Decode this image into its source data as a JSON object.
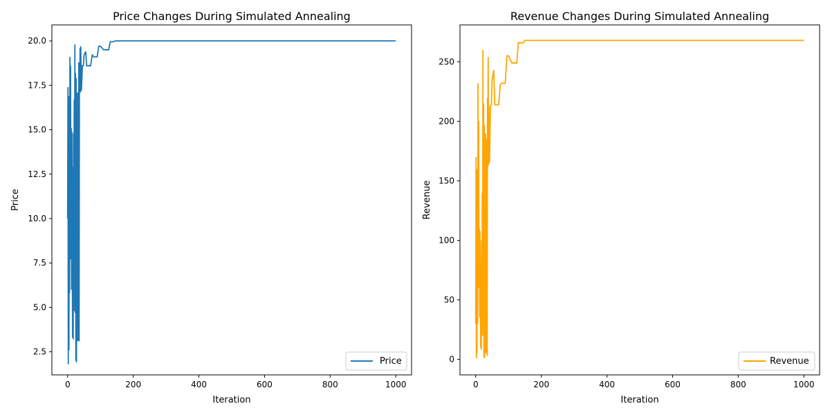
{
  "chart_data": [
    {
      "type": "line",
      "title": "Price Changes During Simulated Annealing",
      "xlabel": "Iteration",
      "ylabel": "Price",
      "xlim": [
        -48,
        1048
      ],
      "ylim": [
        1.2,
        20.9
      ],
      "xticks": [
        0,
        200,
        400,
        600,
        800,
        1000
      ],
      "yticks": [
        2.5,
        5.0,
        7.5,
        10.0,
        12.5,
        15.0,
        17.5,
        20.0
      ],
      "ytick_labels": [
        "2.5",
        "5.0",
        "7.5",
        "10.0",
        "12.5",
        "15.0",
        "17.5",
        "20.0"
      ],
      "legend": "bottom-right",
      "grid": false,
      "series": [
        {
          "name": "Price",
          "color": "#1f77b4",
          "x": [
            0,
            1,
            2,
            3,
            4,
            5,
            6,
            7,
            8,
            9,
            10,
            11,
            12,
            13,
            14,
            15,
            16,
            17,
            18,
            19,
            20,
            21,
            22,
            23,
            24,
            25,
            26,
            27,
            28,
            29,
            30,
            31,
            32,
            33,
            34,
            35,
            36,
            37,
            38,
            39,
            40,
            42,
            45,
            48,
            50,
            55,
            58,
            60,
            62,
            70,
            75,
            80,
            90,
            95,
            100,
            110,
            115,
            120,
            125,
            130,
            135,
            140,
            145,
            150,
            160,
            180,
            200,
            300,
            400,
            500,
            600,
            700,
            800,
            900,
            1000
          ],
          "y": [
            10.0,
            17.4,
            1.8,
            16.9,
            2.6,
            14.5,
            5.8,
            19.1,
            7.7,
            18.6,
            8.1,
            15.1,
            6.0,
            14.9,
            8.8,
            3.3,
            12.9,
            3.2,
            14.8,
            4.8,
            16.7,
            5.5,
            19.8,
            4.7,
            18.2,
            2.0,
            17.9,
            1.9,
            16.3,
            4.9,
            17.1,
            3.1,
            17.1,
            3.1,
            18.8,
            3.1,
            18.8,
            17.2,
            19.6,
            17.1,
            19.7,
            17.2,
            18.6,
            18.6,
            19.2,
            19.4,
            18.6,
            18.6,
            18.6,
            18.6,
            19.2,
            19.1,
            19.1,
            19.7,
            19.7,
            19.5,
            19.5,
            19.5,
            19.5,
            19.95,
            19.95,
            19.95,
            20.0,
            20.0,
            20.0,
            20.0,
            20.0,
            20.0,
            20.0,
            20.0,
            20.0,
            20.0,
            20.0,
            20.0,
            20.0
          ]
        }
      ]
    },
    {
      "type": "line",
      "title": "Revenue Changes During Simulated Annealing",
      "xlabel": "Iteration",
      "ylabel": "Revenue",
      "xlim": [
        -48,
        1048
      ],
      "ylim": [
        -13,
        281
      ],
      "xticks": [
        0,
        200,
        400,
        600,
        800,
        1000
      ],
      "yticks": [
        0,
        50,
        100,
        150,
        200,
        250
      ],
      "ytick_labels": [
        "0",
        "50",
        "100",
        "150",
        "200",
        "250"
      ],
      "legend": "bottom-right",
      "grid": false,
      "series": [
        {
          "name": "Revenue",
          "color": "#ffa500",
          "x": [
            0,
            1,
            2,
            3,
            4,
            5,
            6,
            7,
            8,
            9,
            10,
            11,
            12,
            13,
            14,
            15,
            16,
            17,
            18,
            19,
            20,
            21,
            22,
            23,
            24,
            25,
            26,
            27,
            28,
            29,
            30,
            31,
            32,
            33,
            34,
            35,
            36,
            37,
            38,
            39,
            40,
            42,
            45,
            48,
            50,
            55,
            58,
            60,
            62,
            70,
            75,
            80,
            90,
            95,
            100,
            110,
            115,
            120,
            125,
            130,
            135,
            140,
            145,
            150,
            160,
            180,
            200,
            300,
            400,
            500,
            600,
            700,
            800,
            900,
            1000
          ],
          "y": [
            30,
            170,
            1,
            160,
            5,
            140,
            30,
            232,
            60,
            200,
            70,
            110,
            35,
            108,
            70,
            10,
            80,
            8,
            100,
            20,
            140,
            30,
            260,
            20,
            215,
            2,
            197,
            1,
            160,
            25,
            190,
            5,
            185,
            5,
            160,
            3,
            220,
            165,
            254,
            163,
            213,
            165,
            213,
            214,
            235,
            243,
            214,
            214,
            214,
            214,
            231,
            232,
            232,
            255,
            255,
            249,
            249,
            249,
            249,
            266,
            266,
            266,
            266,
            268,
            268,
            268,
            268,
            268,
            268,
            268,
            268,
            268,
            268,
            268,
            268
          ]
        }
      ]
    }
  ]
}
